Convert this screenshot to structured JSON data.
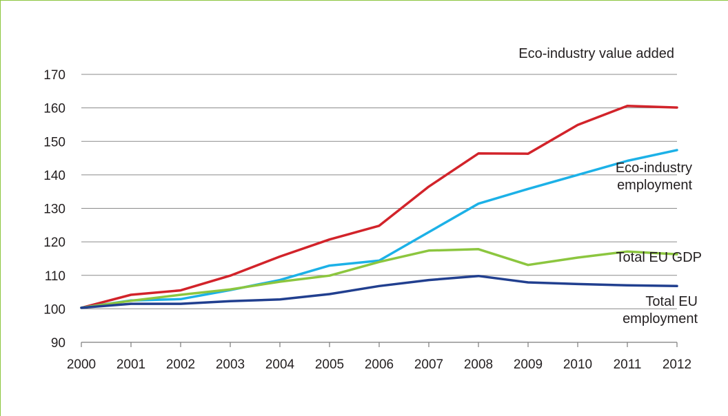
{
  "chart_data": {
    "type": "line",
    "title": "",
    "xlabel": "",
    "ylabel": "",
    "x": [
      "2000",
      "2001",
      "2002",
      "2003",
      "2004",
      "2005",
      "2006",
      "2007",
      "2008",
      "2009",
      "2010",
      "2011",
      "2012"
    ],
    "ylim": [
      90,
      170
    ],
    "yticks": [
      "90",
      "100",
      "110",
      "120",
      "130",
      "140",
      "150",
      "160",
      "170"
    ],
    "grid": "horizontal",
    "series": [
      {
        "name": "Eco-industry value added",
        "label_lines": [
          "Eco-industry value added"
        ],
        "color": "#d2232a",
        "values": [
          100.3,
          104.2,
          105.5,
          109.9,
          115.6,
          120.7,
          124.8,
          136.5,
          146.4,
          146.3,
          154.9,
          160.6,
          160.1
        ]
      },
      {
        "name": "Eco-industry employment",
        "label_lines": [
          "Eco-industry",
          "employment"
        ],
        "color": "#1cb1e7",
        "values": [
          100.3,
          102.5,
          102.9,
          105.6,
          108.6,
          112.9,
          114.4,
          122.9,
          131.4,
          135.8,
          140.0,
          144.2,
          147.4
        ]
      },
      {
        "name": "Total EU GDP",
        "label_lines": [
          "Total EU GDP"
        ],
        "color": "#8cc63f",
        "values": [
          100.3,
          102.4,
          104.2,
          105.8,
          108.1,
          109.9,
          114.0,
          117.4,
          117.8,
          113.1,
          115.3,
          117.1,
          116.3
        ]
      },
      {
        "name": "Total EU employment",
        "label_lines": [
          "Total EU",
          "employment"
        ],
        "color": "#213f8f",
        "values": [
          100.3,
          101.5,
          101.5,
          102.3,
          102.8,
          104.4,
          106.8,
          108.6,
          109.8,
          107.9,
          107.4,
          107.0,
          106.8
        ]
      }
    ]
  }
}
